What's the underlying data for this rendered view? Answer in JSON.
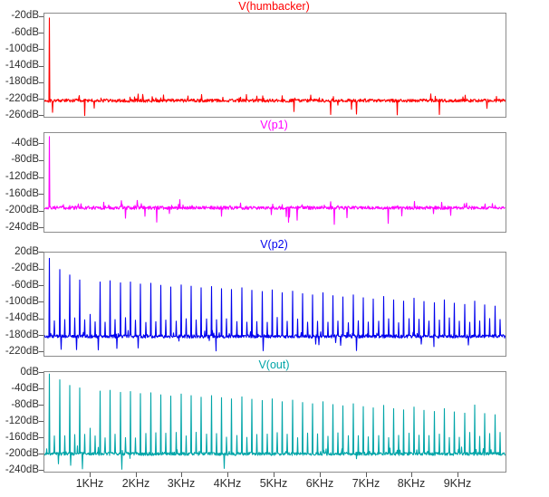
{
  "window": {
    "background": "#ffffff",
    "axis_text_color": "#2e2e2e",
    "box_border_color": "#8c8c8c"
  },
  "x_axis": {
    "unit": "KHz",
    "range_khz": [
      0,
      10.02
    ],
    "major_tick_khz": [
      1,
      2,
      3,
      4,
      5,
      6,
      7,
      8,
      9
    ],
    "major_tick_labels": [
      "1KHz",
      "2KHz",
      "3KHz",
      "4KHz",
      "5KHz",
      "6KHz",
      "7KHz",
      "8KHz",
      "9KHz"
    ]
  },
  "chart_data": [
    {
      "type": "line",
      "title": "V(humbacker)",
      "color": "#ff0000",
      "legend_position": "top-center",
      "grid": false,
      "x_range_khz": [
        0,
        10.02
      ],
      "y_tick_labels": [
        "-20dB",
        "-60dB",
        "-100dB",
        "-140dB",
        "-180dB",
        "-220dB",
        "-260dB"
      ],
      "y_tick_values_db": [
        -20,
        -60,
        -100,
        -140,
        -180,
        -220,
        -260
      ],
      "y_axis_top_frac": 0.035,
      "y_axis_bottom_frac": 0.995,
      "noise_floor_db": -222,
      "noise_jitter_db": 4,
      "harmonics": {
        "start_khz": 0.11,
        "spacing_khz": 0.22,
        "peaks_db": [
          -22
        ]
      },
      "even_harmonic_db": null,
      "seed": 101
    },
    {
      "type": "line",
      "title": "V(p1)",
      "color": "#ff00ff",
      "legend_position": "top-center",
      "grid": false,
      "x_range_khz": [
        0,
        10.02
      ],
      "y_tick_labels": [
        "-40dB",
        "-80dB",
        "-120dB",
        "-160dB",
        "-200dB",
        "-240dB"
      ],
      "y_tick_values_db": [
        -40,
        -80,
        -120,
        -160,
        -200,
        -240
      ],
      "y_axis_top_frac": 0.113,
      "y_axis_bottom_frac": 0.966,
      "noise_floor_db": -191,
      "noise_jitter_db": 4,
      "harmonics": {
        "start_khz": 0.11,
        "spacing_khz": 0.22,
        "peaks_db": [
          -22
        ]
      },
      "even_harmonic_db": null,
      "seed": 202
    },
    {
      "type": "line",
      "title": "V(p2)",
      "color": "#0000ee",
      "legend_position": "top-center",
      "grid": false,
      "x_range_khz": [
        0,
        10.02
      ],
      "y_tick_labels": [
        "20dB",
        "-20dB",
        "-60dB",
        "-100dB",
        "-140dB",
        "-180dB",
        "-220dB"
      ],
      "y_tick_values_db": [
        20,
        -20,
        -60,
        -100,
        -140,
        -180,
        -220
      ],
      "y_axis_top_frac": 0.004,
      "y_axis_bottom_frac": 0.969,
      "noise_floor_db": -181,
      "noise_jitter_db": 4,
      "harmonics": {
        "start_khz": 0.11,
        "spacing_khz": 0.22,
        "peaks_db": [
          7,
          -20,
          -33,
          -45,
          -128,
          -50,
          -47,
          -52,
          -50,
          -55,
          -53,
          -58,
          -62,
          -57,
          -60,
          -64,
          -61,
          -66,
          -68,
          -64,
          -70,
          -73,
          -69,
          -76,
          -72,
          -78,
          -81,
          -76,
          -83,
          -86,
          -81,
          -88,
          -91,
          -85,
          -93,
          -96,
          -89,
          -97,
          -100,
          -93,
          -101,
          -104,
          -96,
          -105,
          -108
        ]
      },
      "even_harmonic_db": -142,
      "seed": 303
    },
    {
      "type": "line",
      "title": "V(out)",
      "color": "#00a5a8",
      "legend_position": "top-center",
      "grid": false,
      "x_range_khz": [
        0,
        10.02
      ],
      "y_tick_labels": [
        "0dB",
        "-40dB",
        "-80dB",
        "-120dB",
        "-160dB",
        "-200dB",
        "-240dB"
      ],
      "y_tick_values_db": [
        0,
        -40,
        -80,
        -120,
        -160,
        -200,
        -240
      ],
      "y_axis_top_frac": 0.012,
      "y_axis_bottom_frac": 0.993,
      "noise_floor_db": -198,
      "noise_jitter_db": 4,
      "harmonics": {
        "start_khz": 0.11,
        "spacing_khz": 0.22,
        "peaks_db": [
          -2,
          -16,
          -30,
          -36,
          -135,
          -44,
          -42,
          -47,
          -45,
          -50,
          -48,
          -53,
          -56,
          -51,
          -55,
          -59,
          -55,
          -60,
          -63,
          -58,
          -64,
          -67,
          -63,
          -70,
          -66,
          -72,
          -75,
          -70,
          -77,
          -80,
          -75,
          -82,
          -85,
          -79,
          -87,
          -90,
          -83,
          -91,
          -94,
          -87,
          -95,
          -98,
          -78,
          -99,
          -102
        ]
      },
      "even_harmonic_db": -152,
      "seed": 404
    }
  ]
}
